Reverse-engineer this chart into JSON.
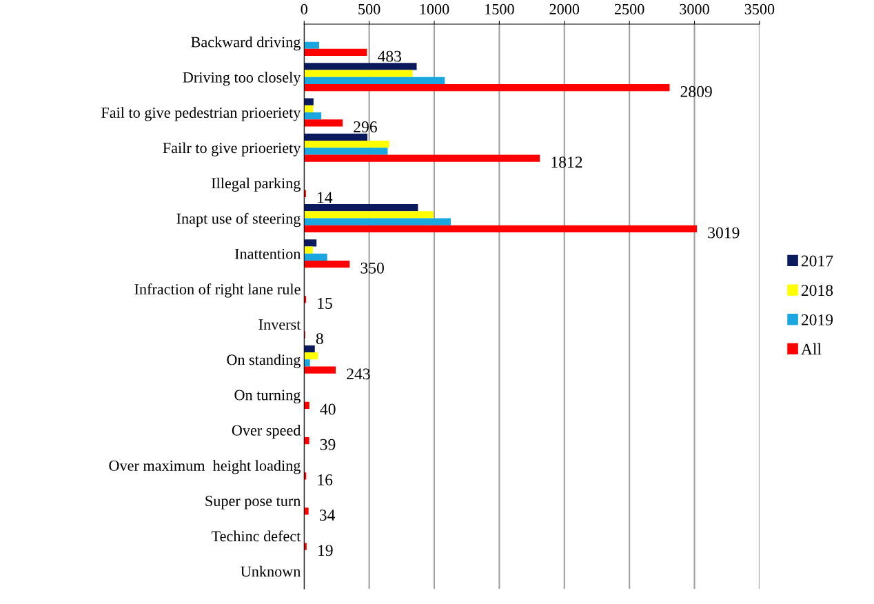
{
  "chart_data": {
    "type": "bar",
    "orientation": "horizontal",
    "categories": [
      "Backward driving",
      "Driving too closely",
      "Fail to give pedestrian prioeriety",
      "Failr to give prioeriety",
      "Illegal parking",
      "Inapt use of steering",
      "Inattention",
      "Infraction of right lane rule",
      "Inverst",
      "On standing",
      "On turning",
      "Over speed",
      "Over maximum  height loading",
      "Super pose turn",
      "Techinc defect",
      "Unknown"
    ],
    "series": [
      {
        "name": "2017",
        "color": "#0a1a5c",
        "values": [
          null,
          865,
          72,
          486,
          null,
          875,
          95,
          null,
          null,
          82,
          null,
          null,
          null,
          null,
          null,
          null
        ]
      },
      {
        "name": "2018",
        "color": "#ffff00",
        "values": [
          null,
          834,
          70,
          655,
          null,
          995,
          67,
          null,
          null,
          107,
          null,
          null,
          null,
          null,
          null,
          null
        ]
      },
      {
        "name": "2019",
        "color": "#1aa7e0",
        "values": [
          115,
          1081,
          132,
          642,
          null,
          1127,
          177,
          null,
          null,
          45,
          null,
          null,
          null,
          null,
          null,
          null
        ]
      },
      {
        "name": "All",
        "color": "#ff0000",
        "values": [
          483,
          2809,
          296,
          1812,
          14,
          3019,
          350,
          15,
          8,
          243,
          40,
          39,
          16,
          34,
          19,
          null
        ],
        "value_labels": [
          "483",
          "2809",
          "296",
          "1812",
          "14",
          "3019",
          "350",
          "15",
          "8",
          "243",
          "40",
          "39",
          "16",
          "34",
          "19",
          null
        ]
      }
    ],
    "xlim": [
      0,
      3500
    ],
    "xticks": [
      0,
      500,
      1000,
      1500,
      2000,
      2500,
      3000,
      3500
    ],
    "grid": "x",
    "legend": "right"
  }
}
